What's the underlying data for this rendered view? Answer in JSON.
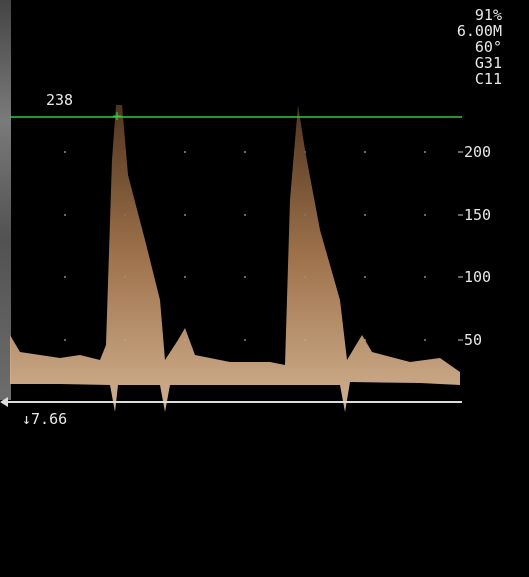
{
  "header": {
    "lines": [
      "91%",
      "6.00M",
      "60°",
      "G31",
      "C11"
    ]
  },
  "cursor": {
    "label": "238"
  },
  "scale": {
    "labels": [
      "200",
      "150",
      "100",
      "50"
    ]
  },
  "baseline": {
    "label": "↓7.66"
  }
}
